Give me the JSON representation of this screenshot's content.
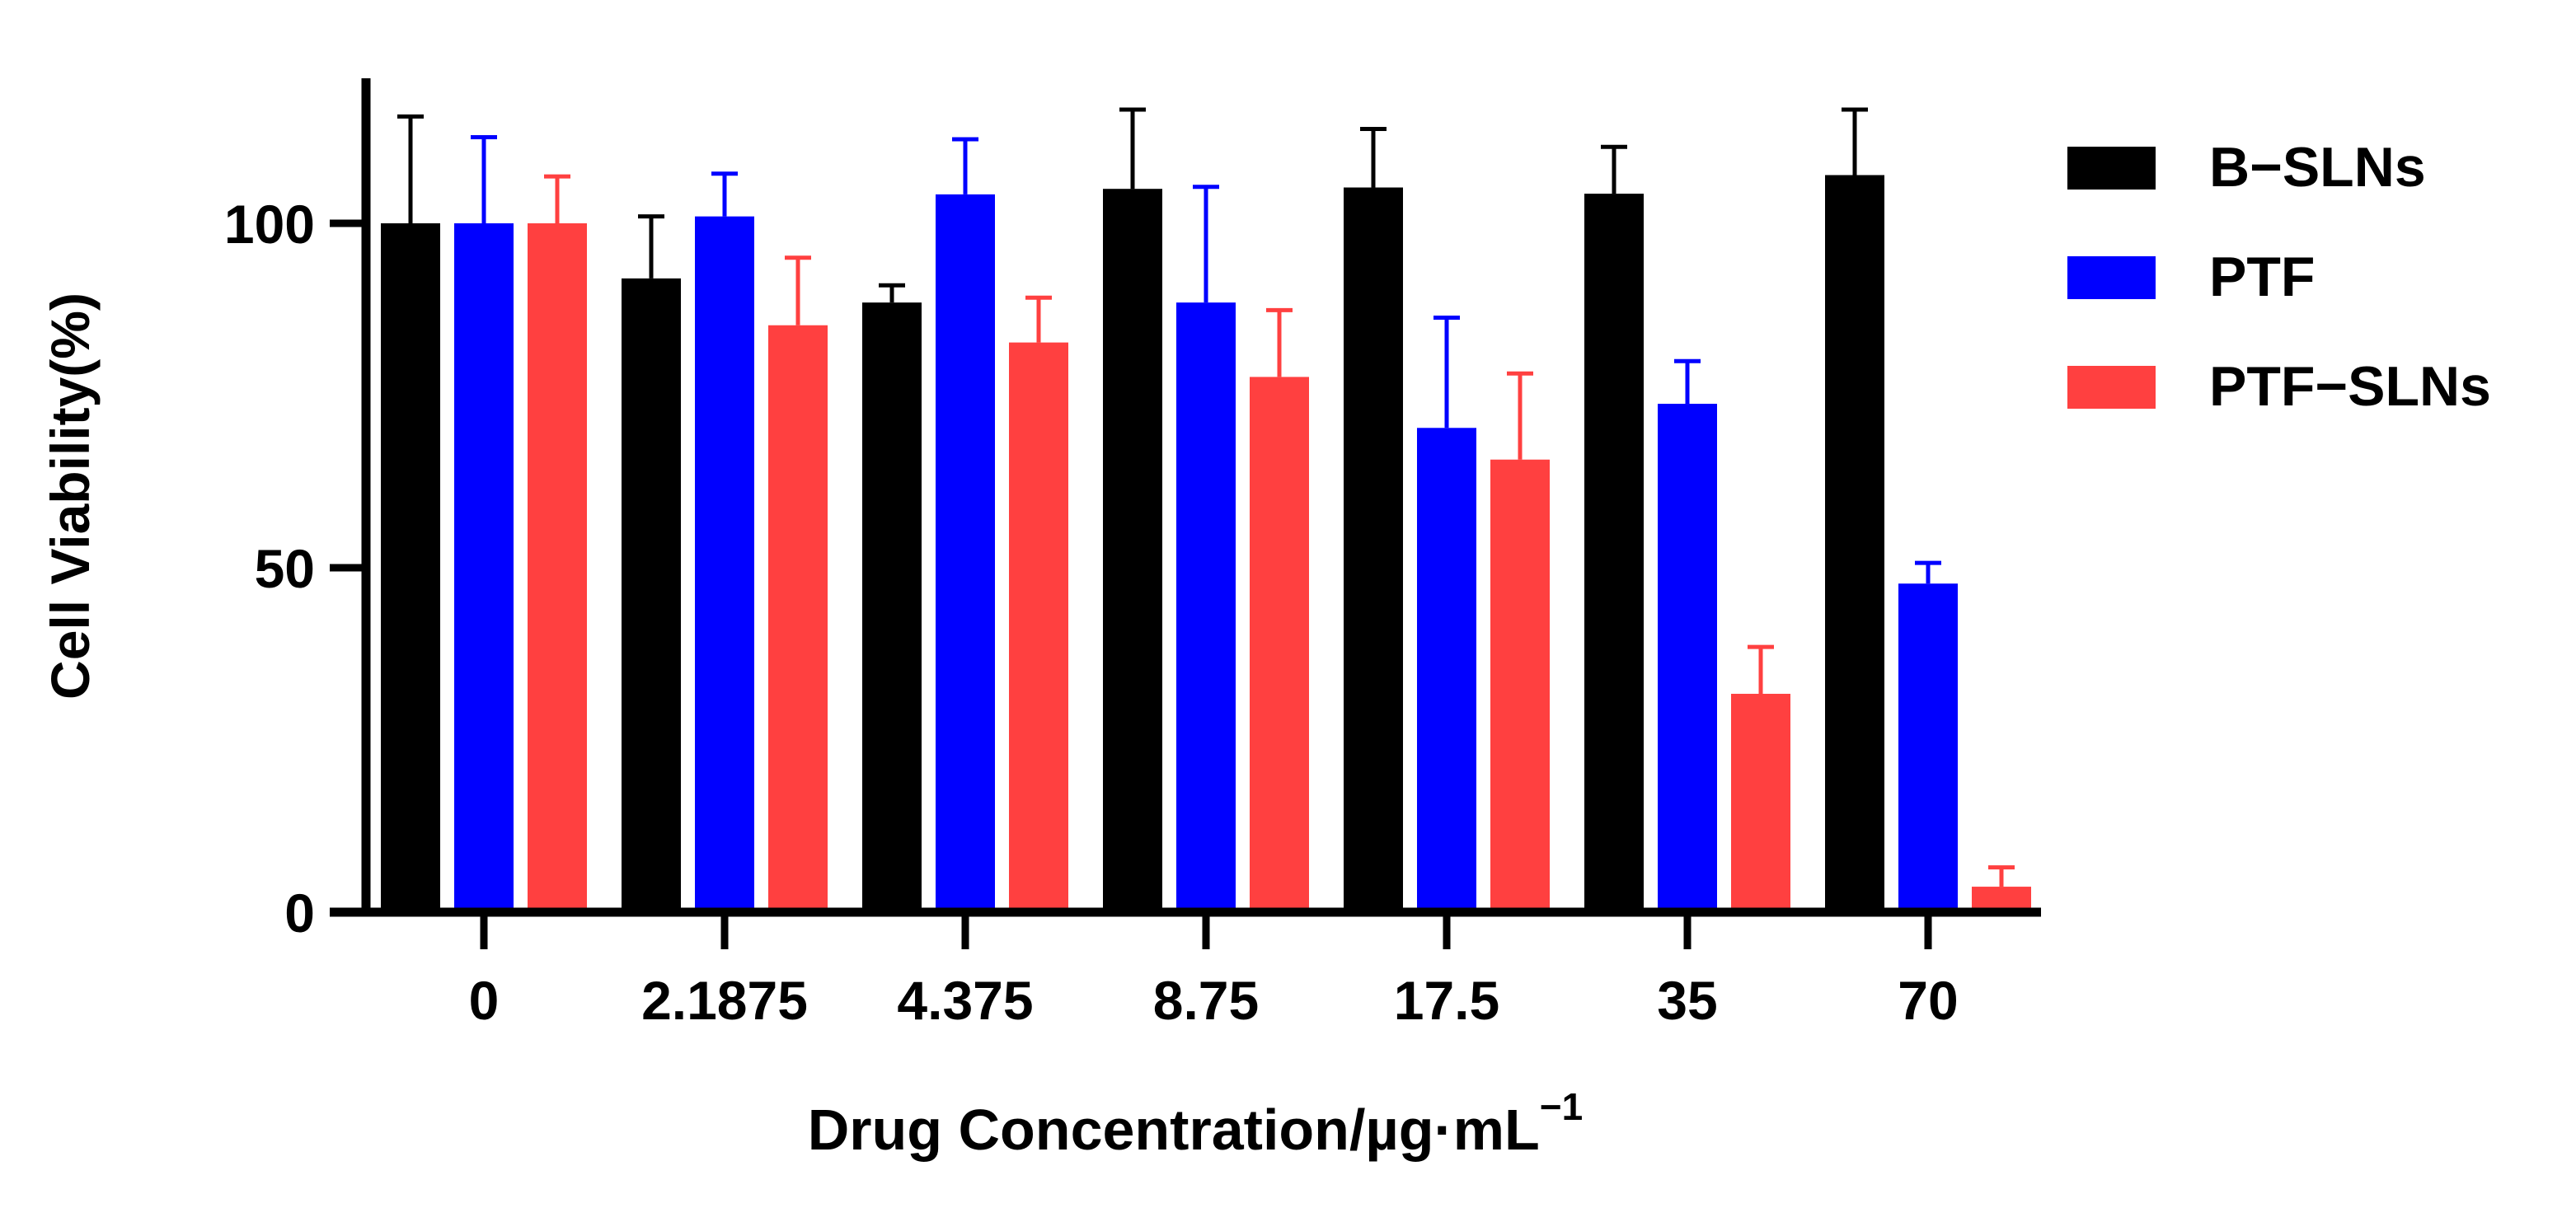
{
  "chart_data": {
    "type": "bar",
    "title": "",
    "xlabel": "Drug Concentration/µg·mL",
    "xlabel_superscript": "−1",
    "ylabel": "Cell Viability(%)",
    "ylim": [
      0,
      120
    ],
    "yticks": [
      0,
      50,
      100
    ],
    "ytick_labels": [
      "0",
      "50",
      "100"
    ],
    "categories": [
      "0",
      "2.1875",
      "4.375",
      "8.75",
      "17.5",
      "35",
      "70"
    ],
    "series": [
      {
        "name": "B−SLNs",
        "color": "#000000",
        "values": [
          100,
          92,
          88.5,
          105,
          105.2,
          104.3,
          107
        ],
        "errors": [
          15.5,
          9,
          2.5,
          11.5,
          8.5,
          6.8,
          9.5
        ]
      },
      {
        "name": "PTF",
        "color": "#0000ff",
        "values": [
          100,
          101,
          104.2,
          88.5,
          70.3,
          73.8,
          47.7
        ],
        "errors": [
          12.5,
          6.2,
          8,
          16.8,
          16,
          6.2,
          3
        ]
      },
      {
        "name": "PTF−SLNs",
        "color": "#ff4040",
        "values": [
          100,
          85.2,
          82.7,
          77.7,
          65.7,
          31.7,
          3.7
        ],
        "errors": [
          6.8,
          9.8,
          6.5,
          9.7,
          12.5,
          6.8,
          2.8
        ]
      }
    ],
    "legend_position": "right"
  }
}
